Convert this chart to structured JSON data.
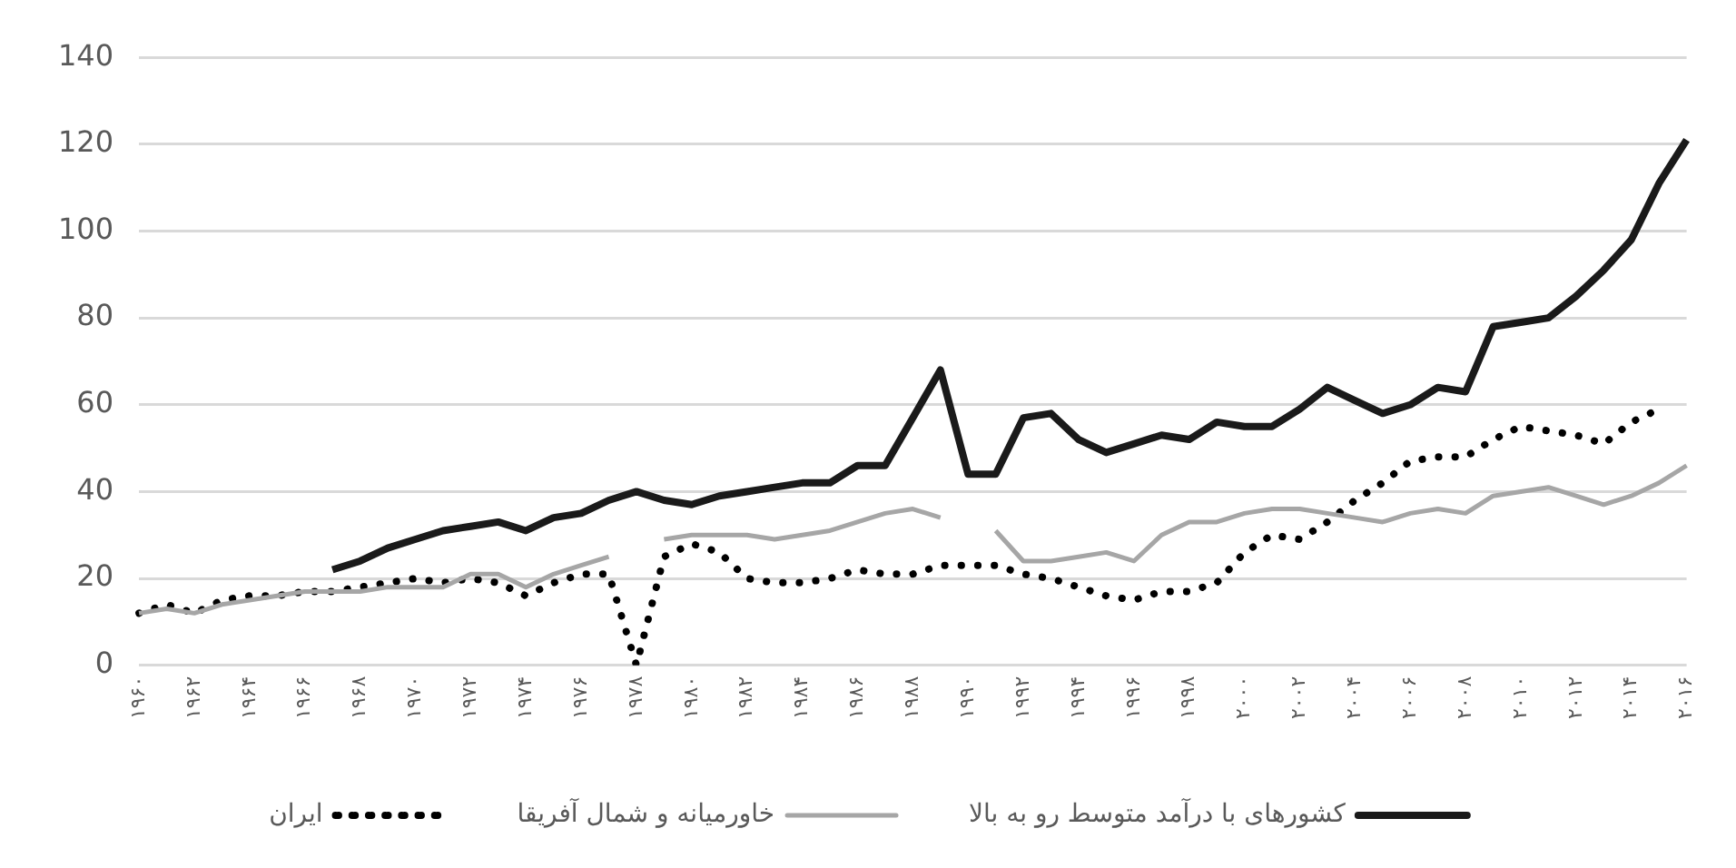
{
  "chart_data": {
    "type": "line",
    "categories": [
      "۱۹۶۰",
      null,
      "۱۹۶۲",
      null,
      "۱۹۶۴",
      null,
      "۱۹۶۶",
      null,
      "۱۹۶۸",
      null,
      "۱۹۷۰",
      null,
      "۱۹۷۲",
      null,
      "۱۹۷۴",
      null,
      "۱۹۷۶",
      null,
      "۱۹۷۸",
      null,
      "۱۹۸۰",
      null,
      "۱۹۸۲",
      null,
      "۱۹۸۴",
      null,
      "۱۹۸۶",
      null,
      "۱۹۸۸",
      null,
      "۱۹۹۰",
      null,
      "۱۹۹۲",
      null,
      "۱۹۹۴",
      null,
      "۱۹۹۶",
      null,
      "۱۹۹۸",
      null,
      "۲۰۰۰",
      null,
      "۲۰۰۲",
      null,
      "۲۰۰۴",
      null,
      "۲۰۰۶",
      null,
      "۲۰۰۸",
      null,
      "۲۰۱۰",
      null,
      "۲۰۱۲",
      null,
      "۲۰۱۴",
      null,
      "۲۰۱۶"
    ],
    "series": [
      {
        "name": "کشورهای با درآمد متوسط رو به بالا",
        "color": "#1a1a1a",
        "line_style": "solid",
        "values": [
          null,
          null,
          null,
          null,
          null,
          null,
          null,
          22,
          24,
          27,
          29,
          31,
          32,
          33,
          31,
          34,
          35,
          38,
          40,
          38,
          37,
          39,
          40,
          41,
          42,
          42,
          46,
          46,
          57,
          68,
          44,
          44,
          57,
          58,
          52,
          49,
          51,
          53,
          52,
          56,
          55,
          55,
          59,
          64,
          61,
          58,
          60,
          64,
          63,
          78,
          79,
          80,
          85,
          91,
          98,
          111,
          121
        ]
      },
      {
        "name": "خاورمیانه و شمال آفریقا",
        "color": "#a6a6a6",
        "line_style": "solid",
        "values": [
          12,
          13,
          12,
          14,
          15,
          16,
          17,
          17,
          17,
          18,
          18,
          18,
          21,
          21,
          18,
          21,
          23,
          25,
          null,
          29,
          30,
          30,
          30,
          29,
          30,
          31,
          33,
          35,
          36,
          34,
          null,
          31,
          24,
          24,
          25,
          26,
          24,
          30,
          33,
          33,
          35,
          36,
          36,
          35,
          34,
          33,
          35,
          36,
          35,
          39,
          40,
          41,
          39,
          37,
          39,
          42,
          46
        ]
      },
      {
        "name": "ایران",
        "color": "#000000",
        "line_style": "dotted",
        "values": [
          12,
          14,
          12,
          15,
          16,
          16,
          17,
          17,
          18,
          19,
          20,
          19,
          20,
          19,
          16,
          19,
          21,
          21,
          0,
          25,
          28,
          26,
          20,
          19,
          19,
          20,
          22,
          21,
          21,
          23,
          23,
          23,
          21,
          20,
          18,
          16,
          15,
          17,
          17,
          19,
          26,
          30,
          29,
          33,
          38,
          42,
          47,
          48,
          48,
          52,
          55,
          54,
          53,
          51,
          56,
          59,
          null
        ]
      }
    ],
    "ylim": [
      0,
      140
    ],
    "yticks": [
      0,
      20,
      40,
      60,
      80,
      100,
      120,
      140
    ],
    "grid": "y",
    "legend": "bottom",
    "marker": "none"
  }
}
